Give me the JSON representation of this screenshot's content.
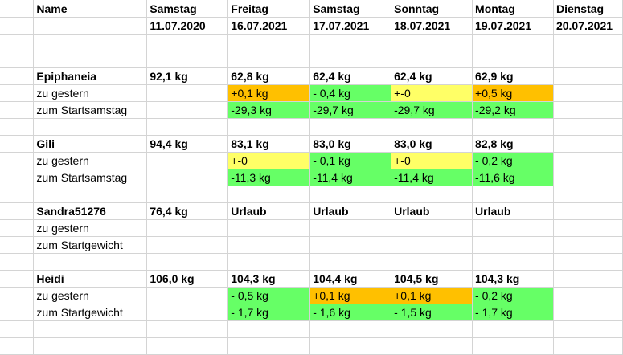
{
  "colors": {
    "orange": "#ffc000",
    "yellow": "#ffff66",
    "green": "#66ff66",
    "gridline": "#d4d4d4"
  },
  "rows": [
    {
      "bold": true,
      "cells": [
        {
          "v": "Name"
        },
        {
          "v": "Samstag"
        },
        {
          "v": "Freitag"
        },
        {
          "v": "Samstag"
        },
        {
          "v": "Sonntag"
        },
        {
          "v": "Montag"
        },
        {
          "v": "Dienstag"
        }
      ]
    },
    {
      "bold": true,
      "cells": [
        {
          "v": ""
        },
        {
          "v": "11.07.2020"
        },
        {
          "v": "16.07.2021"
        },
        {
          "v": "17.07.2021"
        },
        {
          "v": "18.07.2021"
        },
        {
          "v": "19.07.2021"
        },
        {
          "v": "20.07.2021"
        }
      ]
    },
    {
      "cells": []
    },
    {
      "cells": []
    },
    {
      "bold": true,
      "cells": [
        {
          "v": "Epiphaneia"
        },
        {
          "v": "92,1 kg"
        },
        {
          "v": "62,8 kg"
        },
        {
          "v": "62,4 kg"
        },
        {
          "v": "62,4 kg"
        },
        {
          "v": "62,9 kg"
        },
        {
          "v": ""
        }
      ]
    },
    {
      "cells": [
        {
          "v": "zu gestern"
        },
        {
          "v": ""
        },
        {
          "v": "+0,1 kg",
          "c": "orange"
        },
        {
          "v": "- 0,4 kg",
          "c": "green"
        },
        {
          "v": "+-0",
          "c": "yellow"
        },
        {
          "v": "+0,5 kg",
          "c": "orange"
        },
        {
          "v": ""
        }
      ]
    },
    {
      "cells": [
        {
          "v": "zum Startsamstag"
        },
        {
          "v": ""
        },
        {
          "v": "-29,3 kg",
          "c": "green"
        },
        {
          "v": "-29,7 kg",
          "c": "green"
        },
        {
          "v": "-29,7 kg",
          "c": "green"
        },
        {
          "v": "-29,2 kg",
          "c": "green"
        },
        {
          "v": ""
        }
      ]
    },
    {
      "cells": []
    },
    {
      "bold": true,
      "cells": [
        {
          "v": "Gili"
        },
        {
          "v": "94,4 kg"
        },
        {
          "v": "83,1 kg"
        },
        {
          "v": "83,0 kg"
        },
        {
          "v": "83,0 kg"
        },
        {
          "v": "82,8 kg"
        },
        {
          "v": ""
        }
      ]
    },
    {
      "cells": [
        {
          "v": "zu gestern"
        },
        {
          "v": ""
        },
        {
          "v": "+-0",
          "c": "yellow"
        },
        {
          "v": "- 0,1 kg",
          "c": "green"
        },
        {
          "v": "+-0",
          "c": "yellow"
        },
        {
          "v": "- 0,2 kg",
          "c": "green"
        },
        {
          "v": ""
        }
      ]
    },
    {
      "cells": [
        {
          "v": "zum Startsamstag"
        },
        {
          "v": ""
        },
        {
          "v": "-11,3 kg",
          "c": "green"
        },
        {
          "v": "-11,4 kg",
          "c": "green"
        },
        {
          "v": "-11,4 kg",
          "c": "green"
        },
        {
          "v": "-11,6 kg",
          "c": "green"
        },
        {
          "v": ""
        }
      ]
    },
    {
      "cells": []
    },
    {
      "bold": true,
      "cells": [
        {
          "v": "Sandra51276"
        },
        {
          "v": "76,4 kg"
        },
        {
          "v": "Urlaub"
        },
        {
          "v": "Urlaub"
        },
        {
          "v": "Urlaub"
        },
        {
          "v": "Urlaub"
        },
        {
          "v": ""
        }
      ]
    },
    {
      "cells": [
        {
          "v": "zu gestern"
        }
      ]
    },
    {
      "cells": [
        {
          "v": "zum Startgewicht"
        }
      ]
    },
    {
      "cells": []
    },
    {
      "bold": true,
      "cells": [
        {
          "v": "Heidi"
        },
        {
          "v": "106,0 kg"
        },
        {
          "v": "104,3 kg"
        },
        {
          "v": "104,4 kg"
        },
        {
          "v": "104,5 kg"
        },
        {
          "v": "104,3 kg"
        },
        {
          "v": ""
        }
      ]
    },
    {
      "cells": [
        {
          "v": "zu gestern"
        },
        {
          "v": ""
        },
        {
          "v": "- 0,5 kg",
          "c": "green"
        },
        {
          "v": "+0,1 kg",
          "c": "orange"
        },
        {
          "v": "+0,1 kg",
          "c": "orange"
        },
        {
          "v": "- 0,2 kg",
          "c": "green"
        },
        {
          "v": ""
        }
      ]
    },
    {
      "cells": [
        {
          "v": "zum Startgewicht"
        },
        {
          "v": ""
        },
        {
          "v": "- 1,7 kg",
          "c": "green"
        },
        {
          "v": "- 1,6 kg",
          "c": "green"
        },
        {
          "v": "- 1,5 kg",
          "c": "green"
        },
        {
          "v": "- 1,7 kg",
          "c": "green"
        },
        {
          "v": ""
        }
      ]
    },
    {
      "cells": []
    },
    {
      "cells": []
    }
  ]
}
